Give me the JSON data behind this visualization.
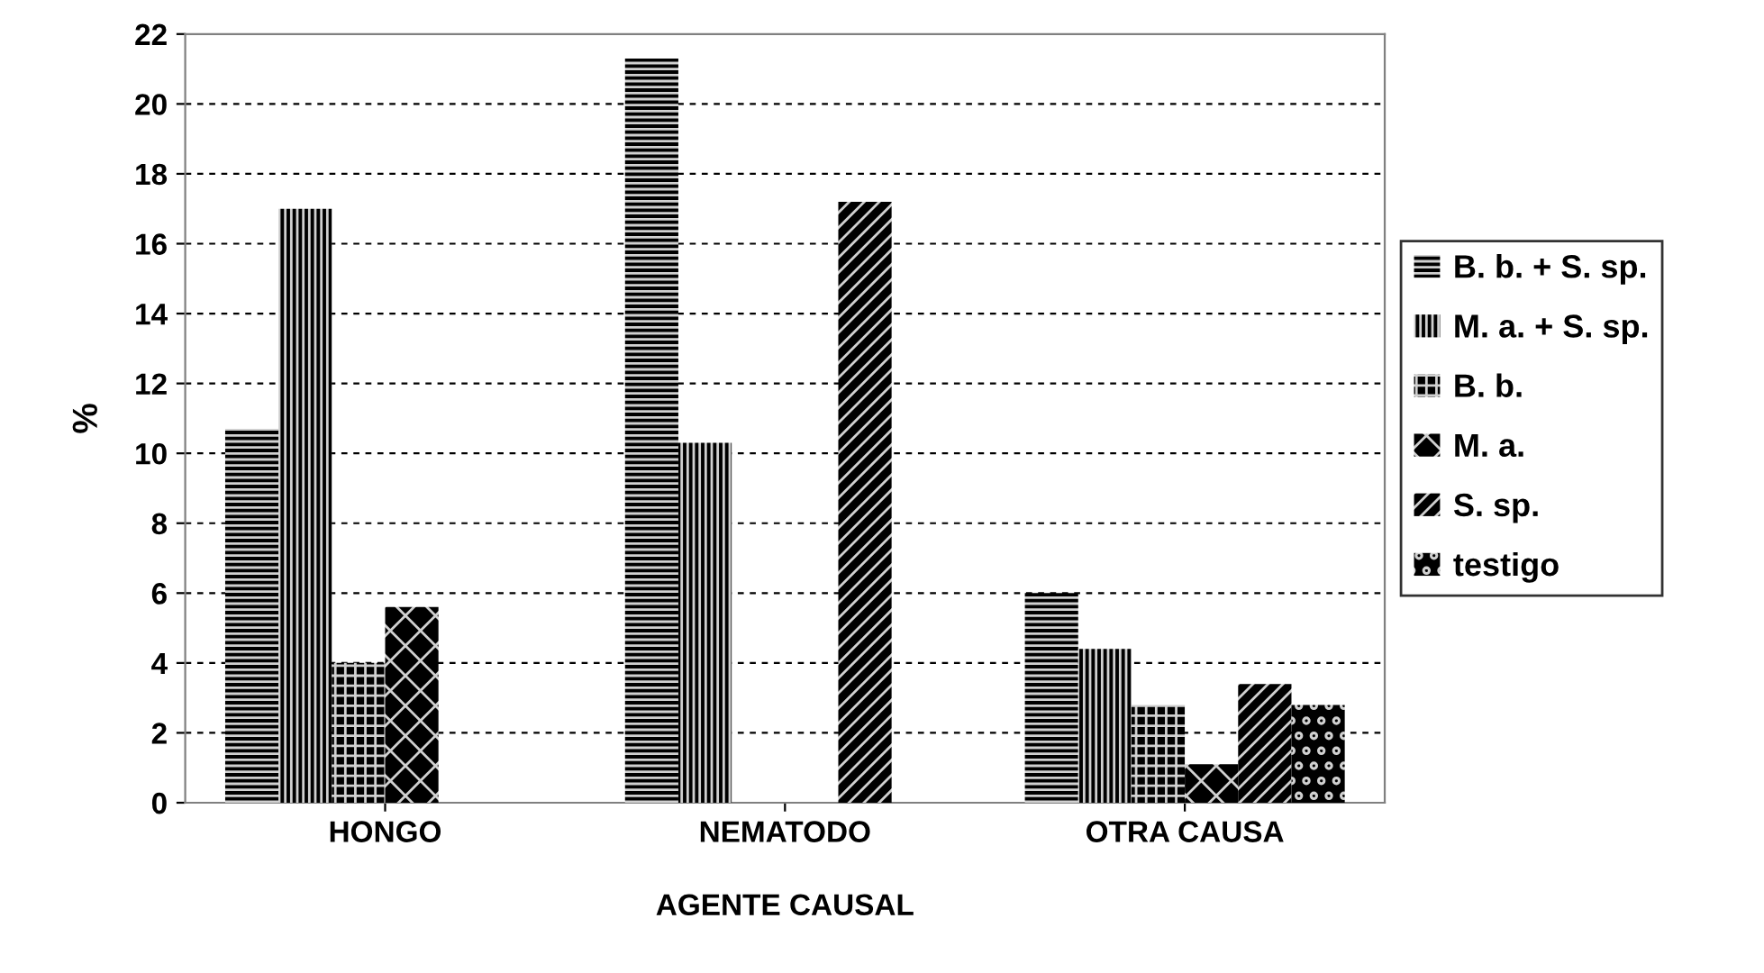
{
  "chart_data": {
    "type": "bar",
    "xlabel": "AGENTE CAUSAL",
    "ylabel": "%",
    "categories": [
      "HONGO",
      "NEMATODO",
      "OTRA CAUSA"
    ],
    "series": [
      {
        "name": "B. b. + S. sp.",
        "color": "#000000",
        "values": [
          10.7,
          21.3,
          6.0
        ]
      },
      {
        "name": "M. a. + S. sp.",
        "color": "#000000",
        "values": [
          17.0,
          10.3,
          4.4
        ]
      },
      {
        "name": "B. b.",
        "color": "#000000",
        "values": [
          4.0,
          null,
          2.8
        ]
      },
      {
        "name": "M. a.",
        "color": "#000000",
        "values": [
          5.6,
          null,
          1.1
        ]
      },
      {
        "name": "S. sp.",
        "color": "#000000",
        "values": [
          null,
          17.2,
          3.4
        ]
      },
      {
        "name": "testigo",
        "color": "#000000",
        "values": [
          null,
          null,
          2.8
        ]
      }
    ],
    "ylim": [
      0,
      22
    ],
    "yticks": [
      0,
      2,
      4,
      6,
      8,
      10,
      12,
      14,
      16,
      18,
      20,
      22
    ],
    "grid": "y",
    "legend": "right"
  }
}
